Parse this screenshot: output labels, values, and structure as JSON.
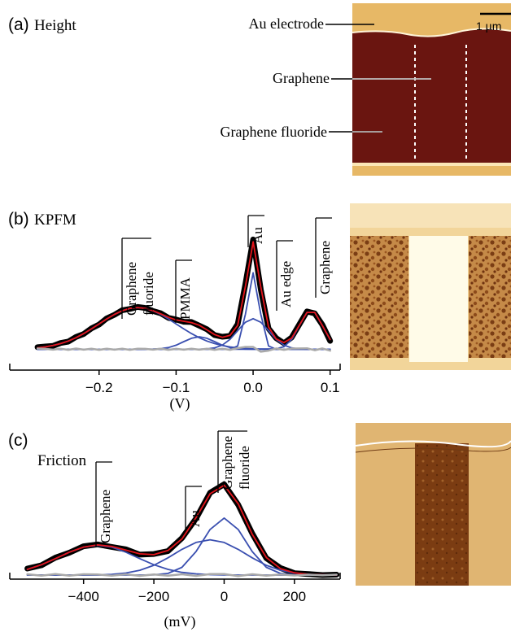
{
  "panel_a": {
    "label": "(a)",
    "title": "Height",
    "scale_bar": "1 µm",
    "annotations": [
      "Au electrode",
      "Graphene",
      "Graphene fluoride"
    ]
  },
  "chart_data": [
    {
      "type": "line",
      "panel_label": "(b)",
      "title": "KPFM",
      "x_label": "(V)",
      "x": [
        -0.28,
        -0.27,
        -0.26,
        -0.25,
        -0.24,
        -0.23,
        -0.22,
        -0.21,
        -0.2,
        -0.19,
        -0.18,
        -0.17,
        -0.16,
        -0.15,
        -0.14,
        -0.13,
        -0.12,
        -0.11,
        -0.1,
        -0.09,
        -0.08,
        -0.07,
        -0.06,
        -0.05,
        -0.04,
        -0.03,
        -0.02,
        -0.01,
        0,
        0.01,
        0.02,
        0.03,
        0.04,
        0.05,
        0.06,
        0.07,
        0.08,
        0.09,
        0.1
      ],
      "series": [
        {
          "color": "#000000",
          "values": [
            0.015,
            0.02,
            0.024,
            0.045,
            0.055,
            0.088,
            0.11,
            0.15,
            0.178,
            0.222,
            0.248,
            0.281,
            0.29,
            0.304,
            0.297,
            0.275,
            0.259,
            0.226,
            0.214,
            0.198,
            0.196,
            0.17,
            0.144,
            0.102,
            0.09,
            0.096,
            0.18,
            0.47,
            0.79,
            0.43,
            0.15,
            0.08,
            0.044,
            0.085,
            0.178,
            0.272,
            0.258,
            0.176,
            0.06
          ]
        },
        {
          "color": "#3a4fb0",
          "values": [
            0.01,
            0.017,
            0.027,
            0.041,
            0.059,
            0.083,
            0.113,
            0.146,
            0.182,
            0.218,
            0.251,
            0.277,
            0.294,
            0.3,
            0.294,
            0.277,
            0.251,
            0.218,
            0.182,
            0.146,
            0.113,
            0.083,
            0.059,
            0.041,
            0.027,
            0.017,
            0.01,
            0.006,
            0.003,
            0.002,
            0.001,
            0,
            0,
            0,
            0,
            0,
            0,
            0,
            0
          ]
        },
        {
          "color": "#3a4fb0",
          "values": [
            0,
            0,
            0,
            0,
            0,
            0,
            0,
            0,
            0,
            0,
            0,
            0,
            0,
            0,
            0,
            0.001,
            0.004,
            0.012,
            0.029,
            0.055,
            0.079,
            0.09,
            0.079,
            0.055,
            0.029,
            0.012,
            0.004,
            0.001,
            0,
            0,
            0,
            0,
            0,
            0,
            0,
            0,
            0,
            0,
            0
          ]
        },
        {
          "color": "#3a4fb0",
          "values": [
            0,
            0,
            0,
            0,
            0,
            0,
            0,
            0,
            0,
            0,
            0,
            0,
            0,
            0,
            0,
            0,
            0,
            0,
            0,
            0,
            0,
            0,
            0,
            0,
            0,
            0,
            0.024,
            0.252,
            0.55,
            0.252,
            0.024,
            0,
            0,
            0,
            0,
            0,
            0,
            0,
            0
          ]
        },
        {
          "color": "#3a4fb0",
          "values": [
            0,
            0,
            0,
            0,
            0,
            0,
            0,
            0,
            0,
            0,
            0,
            0,
            0,
            0,
            0,
            0,
            0,
            0,
            0,
            0,
            0,
            0,
            0.002,
            0.01,
            0.03,
            0.071,
            0.134,
            0.194,
            0.22,
            0.194,
            0.134,
            0.071,
            0.03,
            0.01,
            0.002,
            0,
            0,
            0,
            0
          ]
        },
        {
          "color": "#3a4fb0",
          "values": [
            0,
            0,
            0,
            0,
            0,
            0,
            0,
            0,
            0,
            0,
            0,
            0,
            0,
            0,
            0,
            0,
            0,
            0,
            0,
            0,
            0,
            0,
            0,
            0,
            0,
            0,
            0,
            0,
            0,
            0,
            0.001,
            0.003,
            0.018,
            0.07,
            0.17,
            0.265,
            0.265,
            0.17,
            0.07
          ]
        },
        {
          "color": "#e3141b",
          "values": [
            0.01,
            0.017,
            0.027,
            0.041,
            0.059,
            0.083,
            0.113,
            0.146,
            0.182,
            0.218,
            0.251,
            0.277,
            0.294,
            0.3,
            0.294,
            0.278,
            0.255,
            0.23,
            0.211,
            0.201,
            0.192,
            0.173,
            0.14,
            0.106,
            0.086,
            0.1,
            0.172,
            0.453,
            0.773,
            0.448,
            0.16,
            0.074,
            0.048,
            0.08,
            0.172,
            0.265,
            0.265,
            0.17,
            0.07
          ]
        },
        {
          "color": "#a9a9a9",
          "values": [
            0.005,
            0.003,
            -0.003,
            0.004,
            -0.004,
            0.005,
            -0.003,
            0.004,
            -0.004,
            0.004,
            -0.003,
            0.004,
            -0.004,
            0.004,
            0.003,
            -0.003,
            0.004,
            -0.004,
            0.003,
            -0.003,
            0.004,
            -0.003,
            0.004,
            -0.004,
            0.004,
            -0.004,
            0.008,
            0.017,
            0.017,
            -0.018,
            -0.01,
            0.006,
            -0.004,
            0.005,
            0.006,
            0.007,
            -0.007,
            0.006,
            -0.01
          ]
        }
      ],
      "xlim": [
        -0.316,
        0.113
      ],
      "ylim": [
        -0.15,
        1.05
      ],
      "xticks": [
        {
          "value": -0.2,
          "label": "−0.2"
        },
        {
          "value": -0.1,
          "label": "−0.1"
        },
        {
          "value": 0,
          "label": "0.0"
        },
        0.1
      ],
      "annotations": [
        [
          "Graphene",
          "fluoride"
        ],
        [
          "PMMA"
        ],
        [
          "Au"
        ],
        [
          "Au edge"
        ],
        [
          "Graphene"
        ]
      ]
    },
    {
      "type": "line",
      "panel_label": "(c)",
      "title": "Friction",
      "x_label": "(mV)",
      "x": [
        -560,
        -520,
        -480,
        -440,
        -400,
        -360,
        -320,
        -280,
        -240,
        -200,
        -160,
        -120,
        -80,
        -40,
        0,
        40,
        80,
        120,
        160,
        200,
        240,
        280,
        320
      ],
      "series": [
        {
          "color": "#000000",
          "values": [
            0.048,
            0.072,
            0.128,
            0.165,
            0.212,
            0.226,
            0.207,
            0.19,
            0.15,
            0.155,
            0.176,
            0.272,
            0.416,
            0.606,
            0.668,
            0.518,
            0.306,
            0.124,
            0.052,
            0.014,
            0.008,
            0.0,
            0.003
          ]
        },
        {
          "color": "#3a4fb0",
          "values": [
            0.042,
            0.076,
            0.121,
            0.169,
            0.206,
            0.22,
            0.206,
            0.169,
            0.121,
            0.076,
            0.042,
            0.02,
            0.009,
            0.003,
            0.001,
            0,
            0,
            0,
            0,
            0,
            0,
            0,
            0
          ]
        },
        {
          "color": "#3a4fb0",
          "values": [
            0,
            0,
            0,
            0,
            0,
            0.002,
            0.005,
            0.015,
            0.035,
            0.072,
            0.127,
            0.189,
            0.24,
            0.26,
            0.24,
            0.189,
            0.127,
            0.072,
            0.035,
            0.015,
            0.005,
            0.002,
            0
          ]
        },
        {
          "color": "#3a4fb0",
          "values": [
            0,
            0,
            0,
            0,
            0,
            0,
            0,
            0,
            0,
            0.002,
            0.012,
            0.057,
            0.173,
            0.336,
            0.42,
            0.336,
            0.173,
            0.057,
            0.012,
            0.002,
            0,
            0,
            0
          ]
        },
        {
          "color": "#e3141b",
          "values": [
            0.042,
            0.076,
            0.121,
            0.169,
            0.206,
            0.222,
            0.211,
            0.184,
            0.156,
            0.15,
            0.181,
            0.266,
            0.422,
            0.599,
            0.661,
            0.525,
            0.3,
            0.129,
            0.047,
            0.017,
            0.005,
            0.002,
            0
          ]
        },
        {
          "color": "#a9a9a9",
          "values": [
            0.006,
            -0.004,
            0.007,
            -0.004,
            0.006,
            0.004,
            -0.004,
            0.006,
            -0.006,
            0.005,
            -0.005,
            0.006,
            -0.006,
            0.007,
            0.007,
            -0.007,
            0.006,
            -0.005,
            0.005,
            -0.003,
            0.003,
            -0.002,
            0.003
          ]
        }
      ],
      "xlim": [
        -610,
        330
      ],
      "ylim": [
        -0.03,
        1.0
      ],
      "xticks": [
        {
          "value": -400,
          "label": "−400"
        },
        {
          "value": -200,
          "label": "−200"
        },
        0,
        200
      ],
      "annotations": [
        [
          "Graphene"
        ],
        [
          "Au"
        ],
        [
          "Graphene",
          "fluoride"
        ]
      ]
    }
  ]
}
